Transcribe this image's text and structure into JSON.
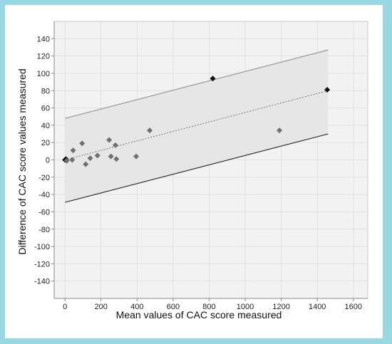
{
  "chart_data": {
    "type": "scatter",
    "xlabel": "Mean values of CAC score measured",
    "ylabel": "Difference of CAC score values measured",
    "xlim": [
      -60,
      1680
    ],
    "ylim": [
      -160,
      160
    ],
    "xticks": [
      0,
      200,
      400,
      600,
      800,
      1000,
      1200,
      1400,
      1600
    ],
    "yticks": [
      140,
      120,
      100,
      80,
      60,
      40,
      20,
      0,
      -20,
      -40,
      -60,
      -80,
      -100,
      -120,
      -140
    ],
    "grid": true,
    "colors": {
      "background": "#97D8E3",
      "plot_bg": "#F2F2F2",
      "band_fill": "#E6E6E6",
      "upper_line": "#999999",
      "lower_line": "#333333",
      "regression": "#777777",
      "point": "#707070",
      "point_dark": "#111111"
    },
    "agreement_band": {
      "x_range": [
        0,
        1460
      ],
      "upper": [
        48,
        127
      ],
      "lower": [
        -49,
        30
      ]
    },
    "regression_line": {
      "x_range": [
        0,
        1460
      ],
      "y": [
        0,
        80
      ]
    },
    "points": [
      {
        "x": 0,
        "y": 0,
        "dark": true
      },
      {
        "x": 5,
        "y": 1,
        "dark": true
      },
      {
        "x": 10,
        "y": -1,
        "dark": false
      },
      {
        "x": 40,
        "y": 0,
        "dark": false
      },
      {
        "x": 45,
        "y": 11,
        "dark": false
      },
      {
        "x": 95,
        "y": 19,
        "dark": false
      },
      {
        "x": 115,
        "y": -5,
        "dark": false
      },
      {
        "x": 140,
        "y": 2,
        "dark": false
      },
      {
        "x": 180,
        "y": 5,
        "dark": false
      },
      {
        "x": 245,
        "y": 23,
        "dark": false
      },
      {
        "x": 255,
        "y": 4,
        "dark": false
      },
      {
        "x": 280,
        "y": 17,
        "dark": false
      },
      {
        "x": 285,
        "y": 1,
        "dark": false
      },
      {
        "x": 395,
        "y": 4,
        "dark": false
      },
      {
        "x": 470,
        "y": 34,
        "dark": false
      },
      {
        "x": 820,
        "y": 94,
        "dark": true
      },
      {
        "x": 1190,
        "y": 34,
        "dark": false
      },
      {
        "x": 1455,
        "y": 81,
        "dark": true
      }
    ]
  }
}
